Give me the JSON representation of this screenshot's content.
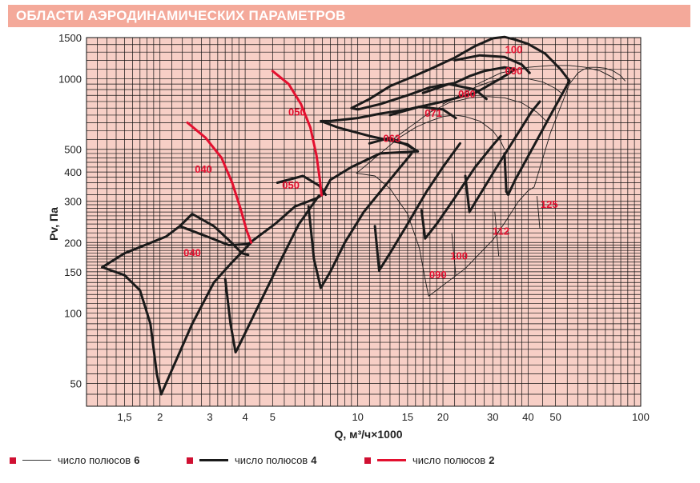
{
  "header": {
    "title": "ОБЛАСТИ АЭРОДИНАМИЧЕСКИХ ПАРАМЕТРОВ"
  },
  "colors": {
    "header_bg": "#f4a99a",
    "plot_bg": "#f7cfc6",
    "grid": "#111111",
    "pole2": "#e3102f",
    "pole4": "#1a1a1a",
    "pole6": "#1a1a1a",
    "label": "#e3102f",
    "legend_square": "#d01032"
  },
  "legend": [
    {
      "text": "число полюсов",
      "num": "6",
      "style": "thin"
    },
    {
      "text": "число полюсов",
      "num": "4",
      "style": "thick"
    },
    {
      "text": "число полюсов",
      "num": "2",
      "style": "red"
    }
  ],
  "chart_data": {
    "type": "line",
    "title": "ОБЛАСТИ АЭРОДИНАМИЧЕСКИХ ПАРАМЕТРОВ",
    "xlabel": "Q, м³/ч×1000",
    "ylabel": "Pv, Па",
    "xscale": "log",
    "yscale": "log",
    "xlim": [
      1.1,
      100
    ],
    "ylim": [
      40,
      1500
    ],
    "xticks": [
      1.5,
      2,
      3,
      4,
      5,
      10,
      15,
      20,
      30,
      40,
      50,
      100
    ],
    "xtick_labels": [
      "1,5",
      "2",
      "3",
      "4",
      "5",
      "10",
      "15",
      "20",
      "30",
      "40",
      "50",
      "100"
    ],
    "yticks": [
      50,
      100,
      150,
      200,
      300,
      400,
      500,
      1000,
      1500
    ],
    "ytick_labels": [
      "50",
      "100",
      "150",
      "200",
      "300",
      "400",
      "500",
      "1000",
      "1500"
    ],
    "xgrid": [
      1.2,
      1.3,
      1.4,
      1.5,
      1.6,
      1.7,
      1.8,
      1.9,
      2,
      2.2,
      2.4,
      2.6,
      2.8,
      3,
      3.2,
      3.4,
      3.6,
      3.8,
      4,
      4.5,
      5,
      5.5,
      6,
      6.5,
      7,
      7.5,
      8,
      8.5,
      9,
      9.5,
      10,
      11,
      12,
      13,
      14,
      15,
      16,
      17,
      18,
      19,
      20,
      22,
      24,
      26,
      28,
      30,
      32,
      34,
      36,
      38,
      40,
      45,
      50,
      55,
      60,
      65,
      70,
      75,
      80,
      85,
      90,
      95,
      100
    ],
    "ygrid": [
      40,
      45,
      50,
      55,
      60,
      65,
      70,
      75,
      80,
      85,
      90,
      95,
      100,
      105,
      110,
      115,
      120,
      125,
      130,
      135,
      140,
      145,
      150,
      155,
      160,
      165,
      170,
      175,
      180,
      185,
      190,
      195,
      200,
      210,
      220,
      230,
      240,
      250,
      260,
      270,
      280,
      290,
      300,
      320,
      340,
      360,
      380,
      400,
      420,
      440,
      460,
      480,
      500,
      550,
      600,
      650,
      700,
      750,
      800,
      850,
      900,
      950,
      1000,
      1100,
      1200,
      1300,
      1400,
      1500
    ],
    "grid": true,
    "legend_position": "bottom",
    "series": [
      {
        "name": "число полюсов 6",
        "style": "thin",
        "curves": [
          [
            [
              9.9,
              395
            ],
            [
              11.5,
              385
            ],
            [
              13,
              340
            ],
            [
              15,
              265
            ],
            [
              16.5,
              190
            ],
            [
              17.5,
              130
            ],
            [
              17.8,
              118
            ],
            [
              24,
              155
            ],
            [
              30,
              205
            ],
            [
              33,
              242
            ],
            [
              37,
              300
            ],
            [
              40,
              333
            ],
            [
              42,
              345
            ],
            [
              48,
              590
            ],
            [
              53,
              800
            ],
            [
              56,
              950
            ],
            [
              60,
              1060
            ],
            [
              63,
              1100
            ],
            [
              66,
              1120
            ],
            [
              70,
              1120
            ],
            [
              75,
              1110
            ],
            [
              80,
              1080
            ],
            [
              85,
              1030
            ],
            [
              88,
              980
            ]
          ],
          [
            [
              9.9,
              395
            ],
            [
              12,
              480
            ],
            [
              14,
              560
            ],
            [
              16,
              620
            ],
            [
              18,
              660
            ],
            [
              20,
              690
            ],
            [
              22,
              700
            ],
            [
              24,
              690
            ],
            [
              27,
              660
            ],
            [
              30,
              600
            ],
            [
              32,
              540
            ],
            [
              33,
              500
            ]
          ],
          [
            [
              13,
              540
            ],
            [
              18,
              720
            ],
            [
              21,
              790
            ],
            [
              25,
              830
            ],
            [
              29,
              840
            ],
            [
              33,
              830
            ],
            [
              38,
              790
            ],
            [
              43,
              720
            ],
            [
              47,
              650
            ]
          ],
          [
            [
              20,
              780
            ],
            [
              26,
              920
            ],
            [
              30,
              980
            ],
            [
              35,
              1010
            ],
            [
              40,
              1000
            ],
            [
              45,
              970
            ],
            [
              50,
              910
            ],
            [
              53,
              860
            ]
          ],
          [
            [
              26,
              940
            ],
            [
              32,
              1060
            ],
            [
              40,
              1120
            ],
            [
              48,
              1140
            ],
            [
              56,
              1140
            ],
            [
              64,
              1120
            ],
            [
              72,
              1080
            ],
            [
              79,
              1020
            ],
            [
              82,
              990
            ]
          ],
          [
            [
              21.5,
              218
            ],
            [
              22.2,
              145
            ]
          ],
          [
            [
              30.5,
              270
            ],
            [
              31.5,
              175
            ]
          ],
          [
            [
              43,
              315
            ],
            [
              44,
              230
            ]
          ]
        ]
      },
      {
        "name": "число полюсов 4",
        "style": "thick",
        "curves": [
          [
            [
              1.25,
              157
            ],
            [
              1.5,
              180
            ],
            [
              2.1,
              212
            ],
            [
              2.35,
              235
            ],
            [
              3,
              210
            ],
            [
              3.5,
              195
            ],
            [
              4.1,
              197
            ],
            [
              4.4,
              210
            ],
            [
              5.1,
              240
            ],
            [
              6,
              285
            ],
            [
              7.2,
              310
            ],
            [
              7.5,
              320
            ],
            [
              8,
              370
            ],
            [
              9.5,
              420
            ],
            [
              12,
              480
            ],
            [
              16.2,
              490
            ],
            [
              15,
              525
            ],
            [
              11,
              570
            ],
            [
              8.5,
              620
            ],
            [
              7.4,
              660
            ],
            [
              8,
              660
            ],
            [
              10,
              680
            ],
            [
              12,
              710
            ],
            [
              15,
              740
            ],
            [
              20,
              800
            ],
            [
              26,
              870
            ],
            [
              30,
              960
            ],
            [
              34,
              1050
            ],
            [
              36,
              1100
            ],
            [
              33,
              1120
            ],
            [
              28,
              1080
            ],
            [
              25,
              1030
            ],
            [
              22,
              960
            ],
            [
              18,
              920
            ],
            [
              15,
              850
            ],
            [
              12,
              780
            ],
            [
              10,
              740
            ],
            [
              9.5,
              750
            ],
            [
              11,
              820
            ],
            [
              13,
              930
            ],
            [
              15,
              1000
            ],
            [
              18,
              1100
            ],
            [
              22,
              1230
            ],
            [
              26,
              1380
            ],
            [
              30,
              1490
            ],
            [
              33,
              1510
            ],
            [
              36,
              1470
            ],
            [
              40,
              1410
            ],
            [
              46,
              1280
            ],
            [
              52,
              1100
            ],
            [
              56,
              980
            ],
            [
              48,
              700
            ],
            [
              42,
              520
            ],
            [
              36,
              370
            ],
            [
              34,
              320
            ],
            [
              33.5,
              330
            ]
          ],
          [
            [
              1.25,
              157
            ],
            [
              1.5,
              145
            ],
            [
              1.7,
              125
            ],
            [
              1.85,
              90
            ],
            [
              1.95,
              55
            ],
            [
              2.02,
              45
            ]
          ],
          [
            [
              2.02,
              45
            ],
            [
              2.6,
              90
            ],
            [
              3.1,
              135
            ],
            [
              3.6,
              165
            ],
            [
              4.2,
              200
            ]
          ],
          [
            [
              3.4,
              140
            ],
            [
              3.55,
              90
            ],
            [
              3.7,
              68
            ],
            [
              3.75,
              70
            ],
            [
              4.5,
              110
            ],
            [
              5.3,
              165
            ],
            [
              6.2,
              240
            ],
            [
              7.3,
              318
            ]
          ],
          [
            [
              6.7,
              285
            ],
            [
              7.0,
              170
            ],
            [
              7.4,
              128
            ],
            [
              8,
              150
            ],
            [
              9,
              200
            ],
            [
              10.5,
              270
            ],
            [
              12.5,
              350
            ],
            [
              15.5,
              480
            ]
          ],
          [
            [
              11.5,
              235
            ],
            [
              11.9,
              152
            ],
            [
              13,
              180
            ],
            [
              15,
              240
            ],
            [
              17.5,
              330
            ],
            [
              20,
              420
            ],
            [
              23,
              530
            ]
          ],
          [
            [
              16.8,
              275
            ],
            [
              17.3,
              208
            ],
            [
              19,
              240
            ],
            [
              22,
              310
            ],
            [
              26,
              420
            ],
            [
              30,
              520
            ],
            [
              32,
              570
            ]
          ],
          [
            [
              24,
              385
            ],
            [
              24.8,
              270
            ],
            [
              27,
              320
            ],
            [
              31,
              420
            ],
            [
              36,
              560
            ],
            [
              41,
              720
            ],
            [
              44,
              800
            ]
          ],
          [
            [
              33.5,
              330
            ],
            [
              33,
              480
            ]
          ],
          [
            [
              2.35,
              235
            ],
            [
              2.6,
              265
            ],
            [
              3.1,
              235
            ],
            [
              3.5,
              205
            ],
            [
              3.9,
              180
            ],
            [
              4.1,
              177
            ]
          ],
          [
            [
              5.2,
              360
            ],
            [
              6.4,
              385
            ],
            [
              7.3,
              350
            ],
            [
              7.7,
              320
            ]
          ],
          [
            [
              11,
              530
            ],
            [
              13,
              560
            ],
            [
              15,
              520
            ],
            [
              16.3,
              490
            ]
          ],
          [
            [
              13,
              700
            ],
            [
              16.5,
              760
            ],
            [
              20,
              740
            ],
            [
              22.2,
              680
            ]
          ],
          [
            [
              17,
              870
            ],
            [
              21,
              950
            ],
            [
              26,
              900
            ],
            [
              28.5,
              820
            ]
          ],
          [
            [
              22,
              1200
            ],
            [
              27,
              1260
            ],
            [
              33,
              1240
            ],
            [
              38,
              1150
            ],
            [
              40.5,
              1060
            ]
          ]
        ]
      },
      {
        "name": "число полюсов 2",
        "style": "red",
        "curves": [
          [
            [
              2.5,
              650
            ],
            [
              2.9,
              560
            ],
            [
              3.3,
              460
            ],
            [
              3.6,
              360
            ],
            [
              3.85,
              280
            ],
            [
              4.05,
              225
            ],
            [
              4.2,
              200
            ]
          ],
          [
            [
              5.0,
              1080
            ],
            [
              5.7,
              950
            ],
            [
              6.3,
              780
            ],
            [
              6.8,
              620
            ],
            [
              7.15,
              470
            ],
            [
              7.35,
              370
            ],
            [
              7.45,
              318
            ]
          ]
        ]
      }
    ],
    "annotations": [
      {
        "text": "040",
        "x": 2.85,
        "y": 410,
        "color": "red"
      },
      {
        "text": "040",
        "x": 2.6,
        "y": 180,
        "color": "red"
      },
      {
        "text": "050",
        "x": 6.1,
        "y": 720,
        "color": "red"
      },
      {
        "text": "050",
        "x": 5.8,
        "y": 350,
        "color": "red"
      },
      {
        "text": "063",
        "x": 13.2,
        "y": 555,
        "color": "red"
      },
      {
        "text": "071",
        "x": 18.5,
        "y": 710,
        "color": "red"
      },
      {
        "text": "080",
        "x": 24.3,
        "y": 860,
        "color": "red"
      },
      {
        "text": "090",
        "x": 35.6,
        "y": 1080,
        "color": "red"
      },
      {
        "text": "100",
        "x": 35.6,
        "y": 1330,
        "color": "red"
      },
      {
        "text": "090",
        "x": 19.2,
        "y": 145,
        "color": "red"
      },
      {
        "text": "100",
        "x": 22.8,
        "y": 175,
        "color": "red"
      },
      {
        "text": "112",
        "x": 32.1,
        "y": 223,
        "color": "red"
      },
      {
        "text": "125",
        "x": 47.5,
        "y": 290,
        "color": "red"
      }
    ]
  }
}
